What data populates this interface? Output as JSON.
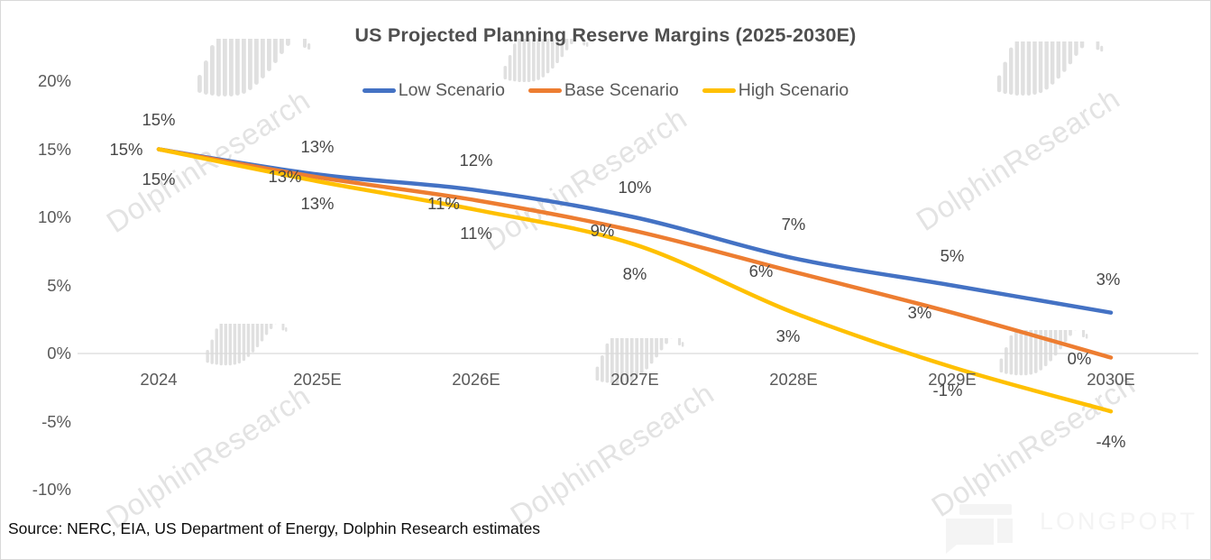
{
  "watermark": {
    "text": "DolphinResearch"
  },
  "branding": {
    "logo_text": "LONGPORT"
  },
  "footer": {
    "source_note": "Source: NERC, EIA, US Department of Energy, Dolphin Research estimates"
  },
  "chart_data": {
    "type": "line",
    "title": "US Projected Planning Reserve Margins (2025-2030E)",
    "categories": [
      "2024",
      "2025E",
      "2026E",
      "2027E",
      "2028E",
      "2029E",
      "2030E"
    ],
    "series": [
      {
        "name": "Low Scenario",
        "color": "#4472C4",
        "values": [
          15,
          13,
          12,
          10,
          7,
          5,
          3
        ],
        "labels": [
          "15%",
          "13%",
          "12%",
          "10%",
          "7%",
          "5%",
          "3%"
        ]
      },
      {
        "name": "Base Scenario",
        "color": "#ED7D31",
        "values": [
          15,
          13,
          11,
          9,
          6,
          3,
          0
        ],
        "labels": [
          "15%",
          "13%",
          "11%",
          "9%",
          "6%",
          "3%",
          "0%"
        ]
      },
      {
        "name": "High Scenario",
        "color": "#FFC000",
        "values": [
          15,
          13,
          11,
          8,
          3,
          -1,
          -4
        ],
        "labels": [
          "15%",
          "13%",
          "11%",
          "8%",
          "3%",
          "-1%",
          "-4%"
        ]
      }
    ],
    "y_ticks": [
      "20%",
      "15%",
      "10%",
      "5%",
      "0%",
      "-5%",
      "-10%"
    ],
    "y_tick_values": [
      20,
      15,
      10,
      5,
      0,
      -5,
      -10
    ],
    "ylim": [
      -10,
      20
    ],
    "grid": "zero-line-only",
    "gridline_color": "#d9d9d9",
    "legend_position": "top-center",
    "xlabel": "",
    "ylabel": ""
  }
}
